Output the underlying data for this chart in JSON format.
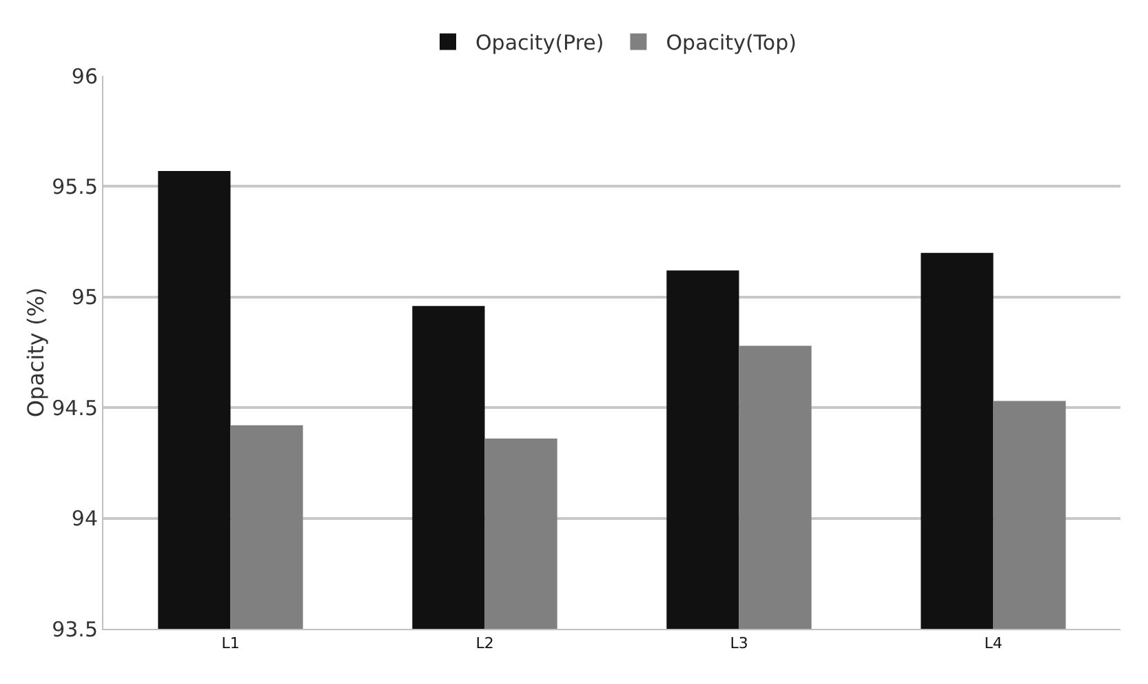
{
  "chart_data": {
    "type": "bar",
    "ylabel": "Opacity (%)",
    "categories": [
      "L1",
      "L2",
      "L3",
      "L4"
    ],
    "series": [
      {
        "name": "Opacity(Pre)",
        "color": "#111111",
        "values": [
          95.57,
          94.96,
          95.12,
          95.2
        ]
      },
      {
        "name": "Opacity(Top)",
        "color": "#808080",
        "values": [
          94.42,
          94.36,
          94.78,
          94.53
        ]
      }
    ],
    "ylim": [
      93.5,
      96
    ],
    "yticks": [
      93.5,
      94,
      94.5,
      95,
      95.5,
      96
    ],
    "grid": "y",
    "legend": "top"
  }
}
